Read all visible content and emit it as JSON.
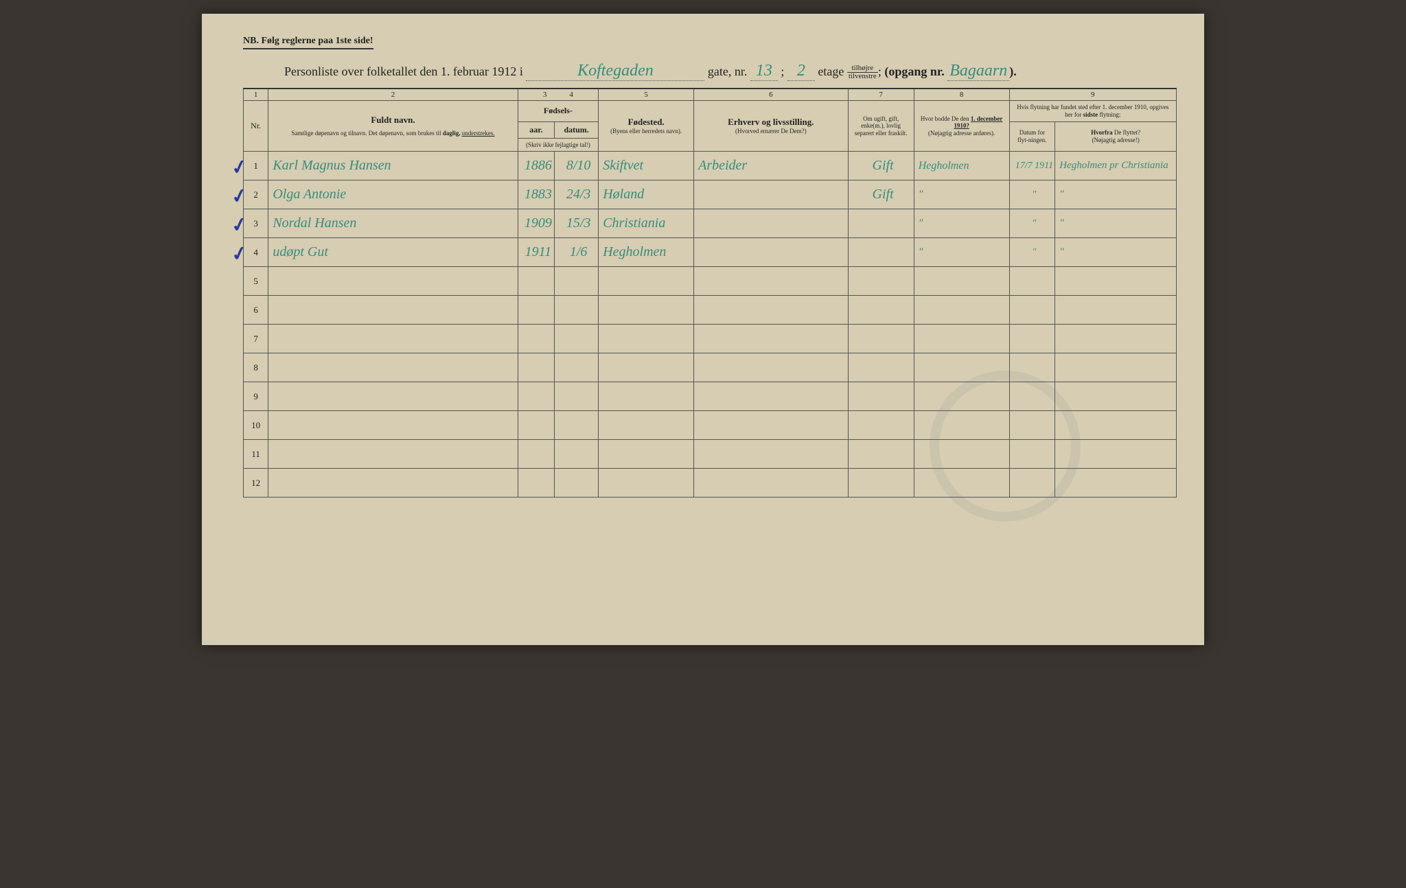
{
  "colors": {
    "paper": "#d6cdb2",
    "ink": "#222222",
    "handwriting": "#3a8b7a",
    "checkmark": "#2a3a9b",
    "border": "#555555"
  },
  "nb_text": "NB.  Følg reglerne paa 1ste side!",
  "title": {
    "prefix": "Personliste over folketallet den 1. februar 1912 i",
    "street": "Koftegaden",
    "gate_label": "gate, nr.",
    "gate_nr": "13",
    "semicolon": ";",
    "etage_nr": "2",
    "etage_label": "etage",
    "fraction_top": "tilhøjre",
    "fraction_bot": "tilvenstre",
    "fraction_punct": ";",
    "opgang_label": "(opgang nr.",
    "opgang_val": "Bagaarn",
    "close": ")."
  },
  "col_numbers": [
    "1",
    "2",
    "3",
    "4",
    "5",
    "6",
    "7",
    "8",
    "9"
  ],
  "headers": {
    "nr": "Nr.",
    "fuldt_navn_title": "Fuldt navn.",
    "fuldt_navn_sub": "Samtlige døpenavn og tilnavn. Det døpenavn, som brukes til daglig, understrekes.",
    "fodsels": "Fødsels-",
    "aar": "aar.",
    "datum": "datum.",
    "skriv_ikke": "(Skriv ikke fejlagtige tal!)",
    "fodested_title": "Fødested.",
    "fodested_sub": "(Byens eller herredets navn).",
    "erhverv_title": "Erhverv og livsstilling.",
    "erhverv_sub": "(Hvorved ernærer De Dem?)",
    "om_ugift": "Om ugift, gift, enke(m.), lovlig separert eller fraskilt.",
    "hvor_bodde_title": "Hvor bodde De den 1. december 1910?",
    "hvor_bodde_sub": "(Nøjagtig adresse anføres).",
    "flytning_title": "Hvis flytning har fundet sted efter 1. december 1910, opgives her for sidste flytning:",
    "datum_flyt": "Datum for flyt-ningen.",
    "hvorfra_title": "Hvorfra De flyttet?",
    "hvorfra_sub": "(Nøjagtig adresse!)"
  },
  "rows": [
    {
      "nr": "1",
      "check": true,
      "name": "Karl Magnus Hansen",
      "year": "1886",
      "date": "8/10",
      "birthplace": "Skiftvet",
      "occupation": "Arbeider",
      "marital": "Gift",
      "address1910": "Hegholmen",
      "moved_date": "17/7 1911",
      "moved_from": "Hegholmen pr Christiania"
    },
    {
      "nr": "2",
      "check": true,
      "name": "Olga Antonie",
      "year": "1883",
      "date": "24/3",
      "birthplace": "Høland",
      "occupation": "",
      "marital": "Gift",
      "address1910": "\"",
      "moved_date": "\"",
      "moved_from": "\""
    },
    {
      "nr": "3",
      "check": true,
      "name": "Nordal Hansen",
      "year": "1909",
      "date": "15/3",
      "birthplace": "Christiania",
      "occupation": "",
      "marital": "",
      "address1910": "\"",
      "moved_date": "\"",
      "moved_from": "\""
    },
    {
      "nr": "4",
      "check": true,
      "name": "udøpt Gut",
      "year": "1911",
      "date": "1/6",
      "birthplace": "Hegholmen",
      "occupation": "",
      "marital": "",
      "address1910": "\"",
      "moved_date": "\"",
      "moved_from": "\""
    }
  ],
  "empty_rows": [
    "5",
    "6",
    "7",
    "8",
    "9",
    "10",
    "11",
    "12"
  ]
}
